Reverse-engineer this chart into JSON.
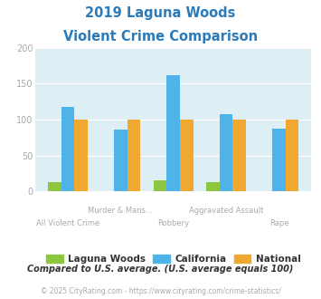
{
  "title_line1": "2019 Laguna Woods",
  "title_line2": "Violent Crime Comparison",
  "title_color": "#2b7bba",
  "categories": [
    "All Violent Crime",
    "Murder & Mans...",
    "Robbery",
    "Aggravated Assault",
    "Rape"
  ],
  "laguna_woods": [
    13,
    0,
    16,
    13,
    0
  ],
  "california": [
    118,
    86,
    162,
    107,
    87
  ],
  "national": [
    100,
    100,
    100,
    100,
    100
  ],
  "colors": {
    "laguna_woods": "#8dc63f",
    "california": "#4db3e8",
    "national": "#f0a830"
  },
  "ylim": [
    0,
    200
  ],
  "yticks": [
    0,
    50,
    100,
    150,
    200
  ],
  "fig_bg": "#ffffff",
  "plot_bg": "#ddeef4",
  "grid_color": "#ffffff",
  "legend_labels": [
    "Laguna Woods",
    "California",
    "National"
  ],
  "label_color": "#aaaaaa",
  "footnote1": "Compared to U.S. average. (U.S. average equals 100)",
  "footnote2": "© 2025 CityRating.com - https://www.cityrating.com/crime-statistics/",
  "footnote1_color": "#333333",
  "footnote2_color": "#aaaaaa",
  "tick_color": "#aaaaaa",
  "label_top_row": [
    "Murder & Mans...",
    "Aggravated Assault"
  ],
  "label_bottom_row": [
    "All Violent Crime",
    "Robbery",
    "Rape"
  ]
}
